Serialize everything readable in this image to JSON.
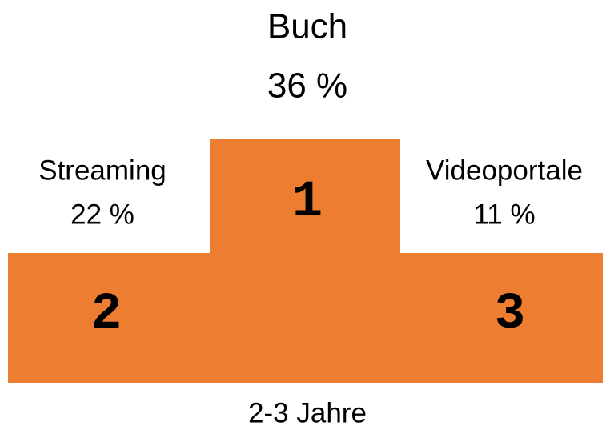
{
  "places": [
    {
      "rank": "1",
      "name": "Buch",
      "share": "36 %"
    },
    {
      "rank": "2",
      "name": "Streaming",
      "share": "22 %"
    },
    {
      "rank": "3",
      "name": "Videoportale",
      "share": "11 %"
    }
  ],
  "footer": "2-3 Jahre"
}
